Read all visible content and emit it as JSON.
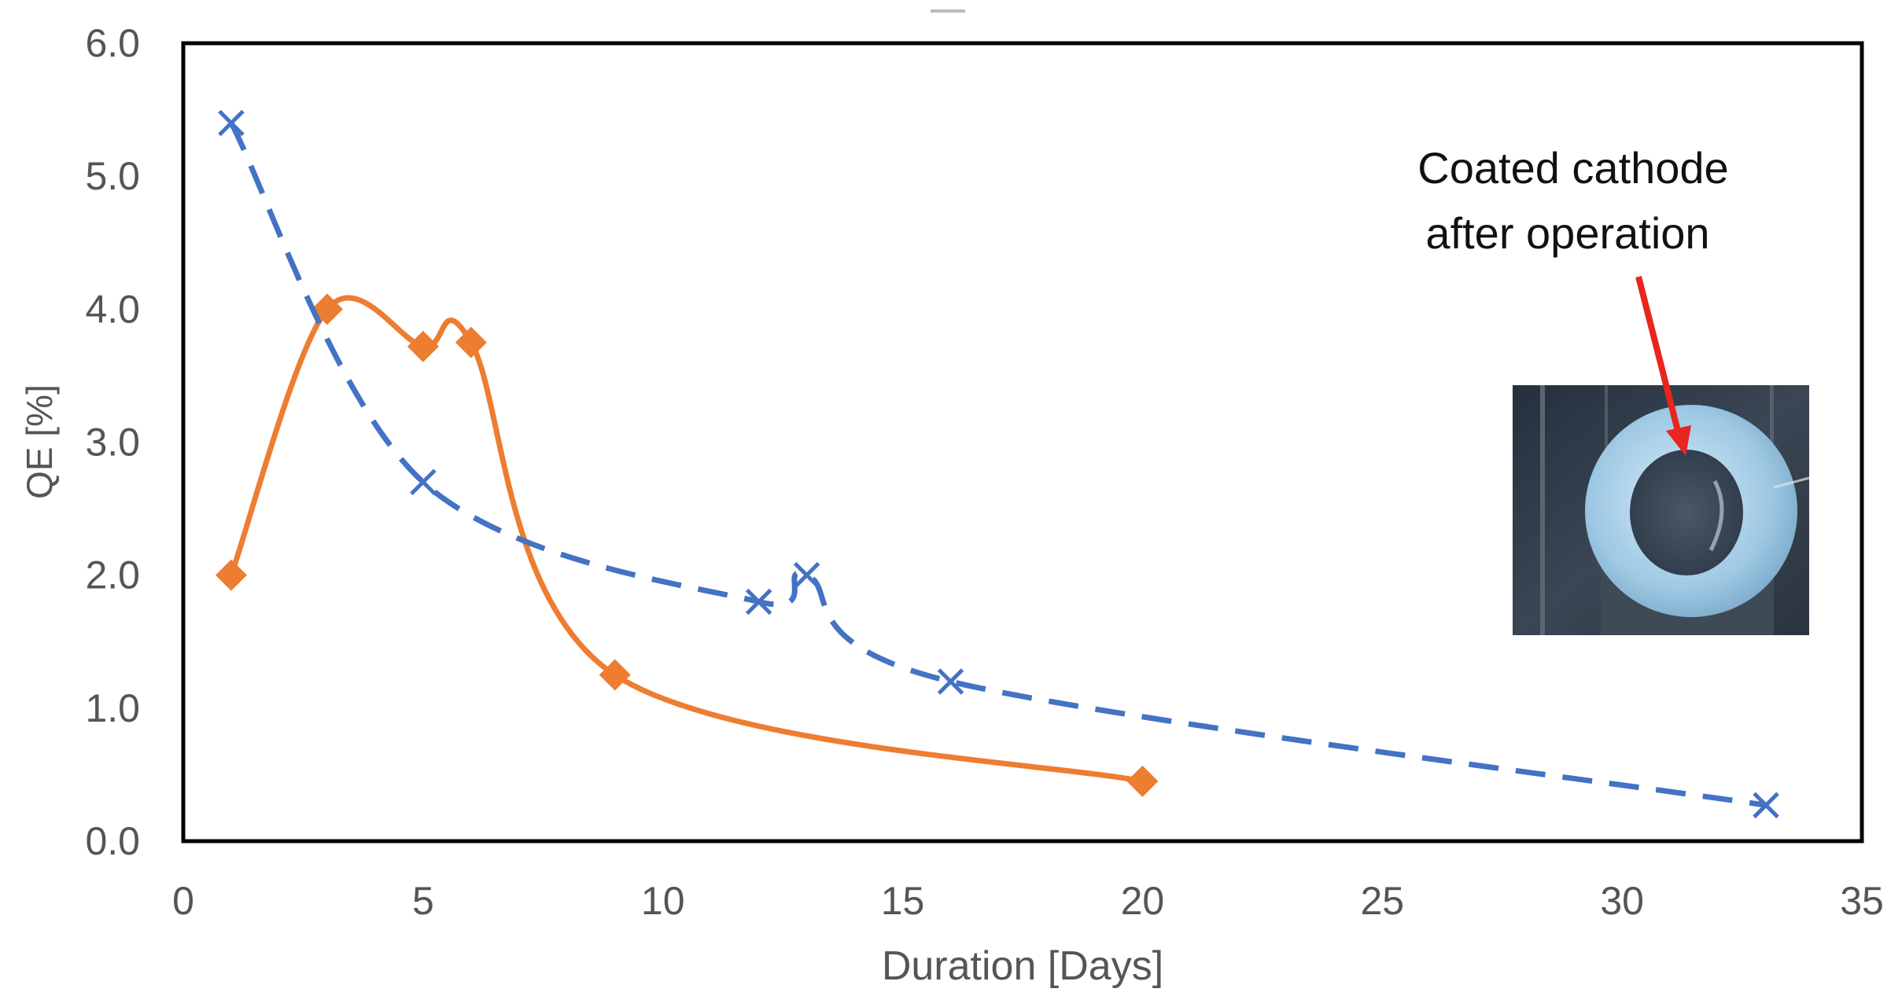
{
  "chart_data": {
    "type": "line",
    "title": "",
    "xlabel": "Duration [Days]",
    "ylabel": "QE [%]",
    "xlim": [
      0,
      35
    ],
    "ylim": [
      0,
      6
    ],
    "x_ticks": [
      "0",
      "5",
      "10",
      "15",
      "20",
      "25",
      "30",
      "35"
    ],
    "y_ticks": [
      "0.0",
      "1.0",
      "2.0",
      "3.0",
      "4.0",
      "5.0",
      "6.0"
    ],
    "grid": false,
    "legend": "none",
    "series": [
      {
        "marker": "diamond",
        "line_style": "solid, smoothed",
        "color": "#ED7D31",
        "x": [
          1,
          3,
          5,
          6,
          9,
          20
        ],
        "y": [
          2.0,
          4.0,
          3.72,
          3.75,
          1.25,
          0.45
        ]
      },
      {
        "marker": "x",
        "line_style": "dashed, smoothed",
        "color": "#4472C4",
        "x": [
          1,
          5,
          12,
          13,
          16,
          33
        ],
        "y": [
          5.4,
          2.7,
          1.8,
          2.0,
          1.2,
          0.27
        ]
      }
    ],
    "annotations": [
      {
        "lines": [
          "Coated cathode",
          "after operation"
        ]
      }
    ],
    "inset": {
      "description": "photo",
      "arrow_color": "#E8251E"
    }
  }
}
